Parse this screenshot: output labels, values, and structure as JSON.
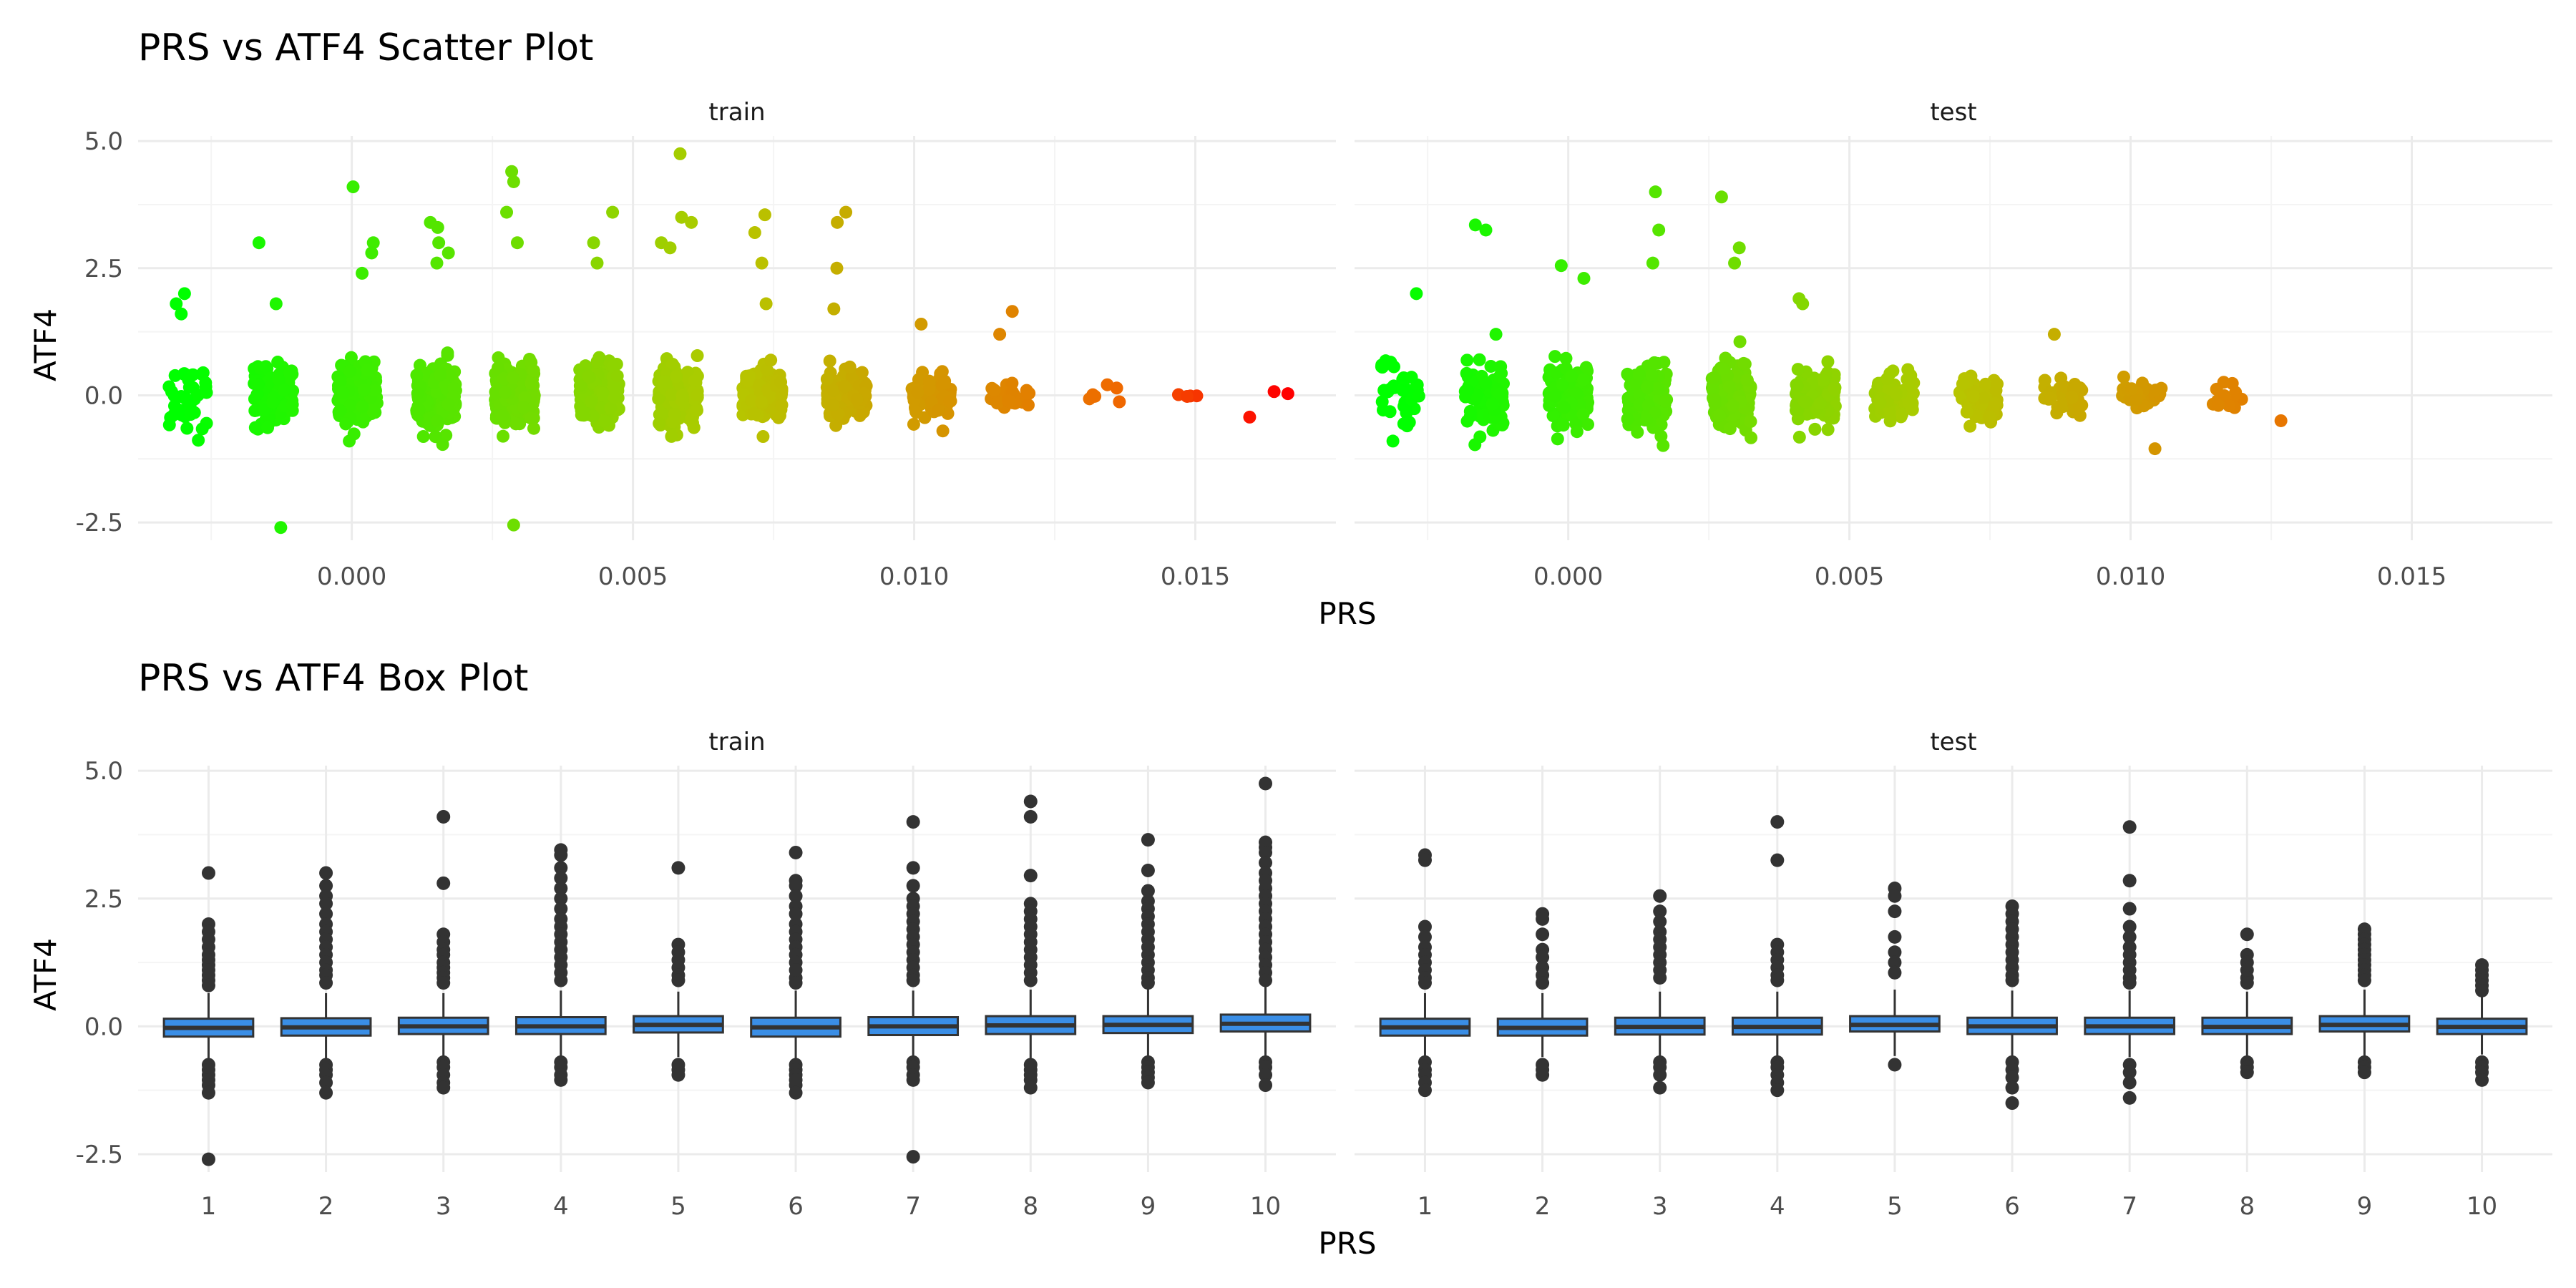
{
  "colors": {
    "grid_major": "#ebebeb",
    "grid_minor": "#f4f4f4",
    "point_dark": "#333333",
    "box_fill": "#3a8ee6",
    "box_stroke": "#333333",
    "median": "#333333",
    "scale_low": "#00ff00",
    "scale_high": "#ff0000"
  },
  "chart_data": [
    {
      "type": "scatter",
      "title": "PRS vs ATF4 Scatter Plot",
      "xlabel": "PRS",
      "ylabel": "ATF4",
      "xlim": [
        -0.0038,
        0.0175
      ],
      "ylim": [
        -2.85,
        5.1
      ],
      "x_ticks": [
        0.0,
        0.005,
        0.01,
        0.015
      ],
      "x_tick_labels": [
        "0.000",
        "0.005",
        "0.010",
        "0.015"
      ],
      "y_ticks": [
        -2.5,
        0.0,
        2.5,
        5.0
      ],
      "y_tick_labels": [
        "-2.5",
        "0.0",
        "2.5",
        "5.0"
      ],
      "grid": true,
      "legend": "none",
      "color_scale": {
        "low": "#00ff00",
        "high": "#ff0000",
        "domain": [
          -0.003,
          0.0165
        ]
      },
      "facets": [
        {
          "label": "train",
          "clusters": [
            {
              "x": -0.0029,
              "sd": 0.6,
              "lo": -0.9,
              "hi": 1.2,
              "n": 35,
              "outliers": [
                2.0,
                1.8,
                1.6
              ]
            },
            {
              "x": -0.0014,
              "sd": 0.55,
              "lo": -1.5,
              "hi": 1.6,
              "n": 110,
              "outliers": [
                3.0,
                -2.6,
                1.8
              ]
            },
            {
              "x": 0.0001,
              "sd": 0.5,
              "lo": -1.4,
              "hi": 2.0,
              "n": 200,
              "outliers": [
                4.1,
                3.0,
                2.8,
                2.4
              ]
            },
            {
              "x": 0.0015,
              "sd": 0.55,
              "lo": -1.3,
              "hi": 2.2,
              "n": 240,
              "outliers": [
                3.4,
                3.3,
                3.0,
                2.8,
                2.6
              ]
            },
            {
              "x": 0.0029,
              "sd": 0.55,
              "lo": -1.2,
              "hi": 2.4,
              "n": 240,
              "outliers": [
                4.4,
                4.2,
                3.6,
                3.0,
                -2.55
              ]
            },
            {
              "x": 0.0044,
              "sd": 0.5,
              "lo": -1.1,
              "hi": 2.2,
              "n": 220,
              "outliers": [
                3.6,
                3.0,
                2.6
              ]
            },
            {
              "x": 0.0058,
              "sd": 0.5,
              "lo": -1.1,
              "hi": 2.4,
              "n": 220,
              "outliers": [
                4.75,
                3.5,
                3.4,
                3.0,
                2.9
              ]
            },
            {
              "x": 0.0073,
              "sd": 0.45,
              "lo": -1.0,
              "hi": 2.0,
              "n": 160,
              "outliers": [
                3.55,
                3.2,
                2.6,
                1.8
              ]
            },
            {
              "x": 0.0088,
              "sd": 0.4,
              "lo": -0.9,
              "hi": 1.3,
              "n": 140,
              "outliers": [
                3.6,
                3.4,
                2.5,
                1.7
              ]
            },
            {
              "x": 0.0103,
              "sd": 0.35,
              "lo": -0.7,
              "hi": 1.4,
              "n": 80,
              "outliers": [
                1.4,
                -0.7
              ]
            },
            {
              "x": 0.0117,
              "sd": 0.3,
              "lo": -0.6,
              "hi": 0.7,
              "n": 30,
              "outliers": [
                1.65,
                1.2
              ]
            },
            {
              "x": 0.0133,
              "sd": 0.35,
              "lo": -0.6,
              "hi": 0.7,
              "n": 6,
              "outliers": []
            },
            {
              "x": 0.0148,
              "sd": 0.1,
              "lo": -0.2,
              "hi": 0.2,
              "n": 4,
              "outliers": []
            },
            {
              "x": 0.0163,
              "sd": 0.3,
              "lo": -0.6,
              "hi": 0.3,
              "n": 3,
              "outliers": []
            }
          ]
        },
        {
          "label": "test",
          "clusters": [
            {
              "x": -0.003,
              "sd": 0.55,
              "lo": -0.9,
              "hi": 1.3,
              "n": 40,
              "outliers": [
                2.0
              ]
            },
            {
              "x": -0.0015,
              "sd": 0.55,
              "lo": -1.3,
              "hi": 1.7,
              "n": 90,
              "outliers": [
                3.35,
                3.25,
                1.2
              ]
            },
            {
              "x": 0.0,
              "sd": 0.55,
              "lo": -1.2,
              "hi": 2.2,
              "n": 140,
              "outliers": [
                2.55,
                2.3
              ]
            },
            {
              "x": 0.0014,
              "sd": 0.55,
              "lo": -1.5,
              "hi": 2.2,
              "n": 140,
              "outliers": [
                4.0,
                3.25,
                2.6
              ]
            },
            {
              "x": 0.0029,
              "sd": 0.55,
              "lo": -1.4,
              "hi": 2.2,
              "n": 140,
              "outliers": [
                3.9,
                2.9,
                2.6
              ]
            },
            {
              "x": 0.0044,
              "sd": 0.45,
              "lo": -0.9,
              "hi": 1.9,
              "n": 110,
              "outliers": [
                1.9,
                1.8
              ]
            },
            {
              "x": 0.0058,
              "sd": 0.4,
              "lo": -0.8,
              "hi": 1.1,
              "n": 90,
              "outliers": []
            },
            {
              "x": 0.0073,
              "sd": 0.4,
              "lo": -0.9,
              "hi": 1.1,
              "n": 70,
              "outliers": []
            },
            {
              "x": 0.0088,
              "sd": 0.3,
              "lo": -0.4,
              "hi": 1.2,
              "n": 40,
              "outliers": [
                1.2
              ]
            },
            {
              "x": 0.0102,
              "sd": 0.35,
              "lo": -1.05,
              "hi": 0.4,
              "n": 30,
              "outliers": [
                -1.05
              ]
            },
            {
              "x": 0.0117,
              "sd": 0.3,
              "lo": -0.4,
              "hi": 0.5,
              "n": 14,
              "outliers": []
            },
            {
              "x": 0.013,
              "sd": 0.1,
              "lo": -0.6,
              "hi": -0.5,
              "n": 1,
              "outliers": []
            }
          ]
        }
      ]
    },
    {
      "type": "box",
      "title": "PRS vs ATF4 Box Plot",
      "xlabel": "PRS",
      "ylabel": "ATF4",
      "categories": [
        "1",
        "2",
        "3",
        "4",
        "5",
        "6",
        "7",
        "8",
        "9",
        "10"
      ],
      "ylim": [
        -2.85,
        5.1
      ],
      "y_ticks": [
        -2.5,
        0.0,
        2.5,
        5.0
      ],
      "y_tick_labels": [
        "-2.5",
        "0.0",
        "2.5",
        "5.0"
      ],
      "grid": true,
      "legend": "none",
      "facets": [
        {
          "label": "train",
          "boxes": [
            {
              "q1": -0.2,
              "median": -0.03,
              "q3": 0.15,
              "wlo": -0.65,
              "whi": 0.65,
              "outliers": [
                3.0,
                2.0,
                1.85,
                1.7,
                1.55,
                1.4,
                1.3,
                1.2,
                1.1,
                1.0,
                0.9,
                0.8,
                -0.75,
                -0.85,
                -0.95,
                -1.05,
                -1.15,
                -1.3,
                -2.6
              ]
            },
            {
              "q1": -0.18,
              "median": -0.02,
              "q3": 0.16,
              "wlo": -0.65,
              "whi": 0.65,
              "outliers": [
                3.0,
                2.75,
                2.55,
                2.4,
                2.2,
                2.0,
                1.85,
                1.7,
                1.55,
                1.4,
                1.25,
                1.1,
                1.0,
                0.85,
                -0.75,
                -0.85,
                -0.95,
                -1.1,
                -1.3
              ]
            },
            {
              "q1": -0.15,
              "median": 0.0,
              "q3": 0.17,
              "wlo": -0.6,
              "whi": 0.65,
              "outliers": [
                4.1,
                2.8,
                1.8,
                1.65,
                1.5,
                1.4,
                1.25,
                1.15,
                1.05,
                0.95,
                0.85,
                -0.7,
                -0.8,
                -0.95,
                -1.1,
                -1.2
              ]
            },
            {
              "q1": -0.15,
              "median": 0.0,
              "q3": 0.18,
              "wlo": -0.6,
              "whi": 0.7,
              "outliers": [
                3.45,
                3.35,
                3.1,
                2.9,
                2.7,
                2.5,
                2.3,
                2.1,
                1.95,
                1.8,
                1.65,
                1.5,
                1.35,
                1.2,
                1.05,
                0.9,
                -0.7,
                -0.8,
                -0.95,
                -1.05
              ]
            },
            {
              "q1": -0.12,
              "median": 0.03,
              "q3": 0.2,
              "wlo": -0.6,
              "whi": 0.68,
              "outliers": [
                3.1,
                1.6,
                1.45,
                1.3,
                1.15,
                1.0,
                0.9,
                -0.75,
                -0.85,
                -0.95
              ]
            },
            {
              "q1": -0.2,
              "median": -0.02,
              "q3": 0.17,
              "wlo": -0.65,
              "whi": 0.7,
              "outliers": [
                3.4,
                2.85,
                2.75,
                2.55,
                2.35,
                2.2,
                2.0,
                1.85,
                1.7,
                1.55,
                1.4,
                1.25,
                1.1,
                0.95,
                0.85,
                -0.75,
                -0.85,
                -0.95,
                -1.05,
                -1.15,
                -1.3
              ]
            },
            {
              "q1": -0.17,
              "median": 0.0,
              "q3": 0.18,
              "wlo": -0.62,
              "whi": 0.7,
              "outliers": [
                4.0,
                3.1,
                2.75,
                2.5,
                2.35,
                2.2,
                2.05,
                1.9,
                1.75,
                1.6,
                1.45,
                1.3,
                1.15,
                1.0,
                0.9,
                -0.7,
                -0.8,
                -0.95,
                -1.05,
                -2.55
              ]
            },
            {
              "q1": -0.15,
              "median": 0.02,
              "q3": 0.2,
              "wlo": -0.62,
              "whi": 0.72,
              "outliers": [
                4.4,
                4.1,
                2.95,
                2.4,
                2.25,
                2.1,
                1.95,
                1.8,
                1.65,
                1.5,
                1.35,
                1.2,
                1.05,
                0.9,
                -0.75,
                -0.85,
                -0.95,
                -1.05,
                -1.2
              ]
            },
            {
              "q1": -0.13,
              "median": 0.03,
              "q3": 0.2,
              "wlo": -0.6,
              "whi": 0.75,
              "outliers": [
                3.65,
                3.05,
                2.65,
                2.45,
                2.3,
                2.15,
                2.0,
                1.85,
                1.7,
                1.55,
                1.4,
                1.25,
                1.1,
                0.95,
                0.85,
                -0.7,
                -0.8,
                -0.9,
                -1.0,
                -1.1
              ]
            },
            {
              "q1": -0.1,
              "median": 0.05,
              "q3": 0.23,
              "wlo": -0.58,
              "whi": 0.8,
              "outliers": [
                4.75,
                3.6,
                3.5,
                3.4,
                3.2,
                3.0,
                2.85,
                2.7,
                2.55,
                2.4,
                2.25,
                2.1,
                1.95,
                1.8,
                1.65,
                1.5,
                1.35,
                1.2,
                1.05,
                0.9,
                -0.7,
                -0.8,
                -0.95,
                -1.15
              ]
            }
          ]
        },
        {
          "label": "test",
          "boxes": [
            {
              "q1": -0.18,
              "median": -0.02,
              "q3": 0.15,
              "wlo": -0.6,
              "whi": 0.65,
              "outliers": [
                3.35,
                3.25,
                1.95,
                1.75,
                1.55,
                1.4,
                1.25,
                1.1,
                0.95,
                0.85,
                -0.7,
                -0.85,
                -0.95,
                -1.1,
                -1.25
              ]
            },
            {
              "q1": -0.18,
              "median": -0.03,
              "q3": 0.15,
              "wlo": -0.6,
              "whi": 0.65,
              "outliers": [
                2.2,
                2.1,
                1.8,
                1.5,
                1.35,
                1.15,
                1.0,
                0.85,
                -0.75,
                -0.85,
                -0.95
              ]
            },
            {
              "q1": -0.16,
              "median": -0.01,
              "q3": 0.17,
              "wlo": -0.6,
              "whi": 0.68,
              "outliers": [
                2.55,
                2.25,
                2.05,
                1.85,
                1.7,
                1.55,
                1.4,
                1.25,
                1.1,
                0.95,
                -0.7,
                -0.8,
                -0.95,
                -1.2
              ]
            },
            {
              "q1": -0.16,
              "median": -0.01,
              "q3": 0.17,
              "wlo": -0.6,
              "whi": 0.68,
              "outliers": [
                4.0,
                3.25,
                1.6,
                1.45,
                1.3,
                1.15,
                1.0,
                0.9,
                -0.7,
                -0.8,
                -0.95,
                -1.1,
                -1.25
              ]
            },
            {
              "q1": -0.1,
              "median": 0.03,
              "q3": 0.2,
              "wlo": -0.58,
              "whi": 0.72,
              "outliers": [
                2.7,
                2.55,
                2.25,
                1.75,
                1.45,
                1.25,
                1.05,
                -0.75
              ]
            },
            {
              "q1": -0.15,
              "median": 0.0,
              "q3": 0.17,
              "wlo": -0.6,
              "whi": 0.7,
              "outliers": [
                2.35,
                2.2,
                2.05,
                1.9,
                1.75,
                1.6,
                1.45,
                1.3,
                1.15,
                1.0,
                0.9,
                -0.7,
                -0.85,
                -1.0,
                -1.2,
                -1.5
              ]
            },
            {
              "q1": -0.15,
              "median": 0.0,
              "q3": 0.17,
              "wlo": -0.6,
              "whi": 0.7,
              "outliers": [
                3.9,
                2.85,
                2.3,
                1.95,
                1.75,
                1.55,
                1.4,
                1.25,
                1.1,
                0.95,
                0.85,
                -0.75,
                -0.9,
                -1.1,
                -1.4
              ]
            },
            {
              "q1": -0.15,
              "median": -0.01,
              "q3": 0.17,
              "wlo": -0.58,
              "whi": 0.68,
              "outliers": [
                1.8,
                1.4,
                1.25,
                1.1,
                0.95,
                0.85,
                -0.7,
                -0.8,
                -0.9
              ]
            },
            {
              "q1": -0.1,
              "median": 0.03,
              "q3": 0.2,
              "wlo": -0.58,
              "whi": 0.72,
              "outliers": [
                1.9,
                1.8,
                1.7,
                1.6,
                1.5,
                1.4,
                1.3,
                1.2,
                1.1,
                1.0,
                0.9,
                -0.7,
                -0.8,
                -0.9
              ]
            },
            {
              "q1": -0.15,
              "median": -0.01,
              "q3": 0.15,
              "wlo": -0.55,
              "whi": 0.6,
              "outliers": [
                1.2,
                1.1,
                1.0,
                0.9,
                0.8,
                0.7,
                -0.7,
                -0.8,
                -0.9,
                -1.05
              ]
            }
          ]
        }
      ]
    }
  ]
}
